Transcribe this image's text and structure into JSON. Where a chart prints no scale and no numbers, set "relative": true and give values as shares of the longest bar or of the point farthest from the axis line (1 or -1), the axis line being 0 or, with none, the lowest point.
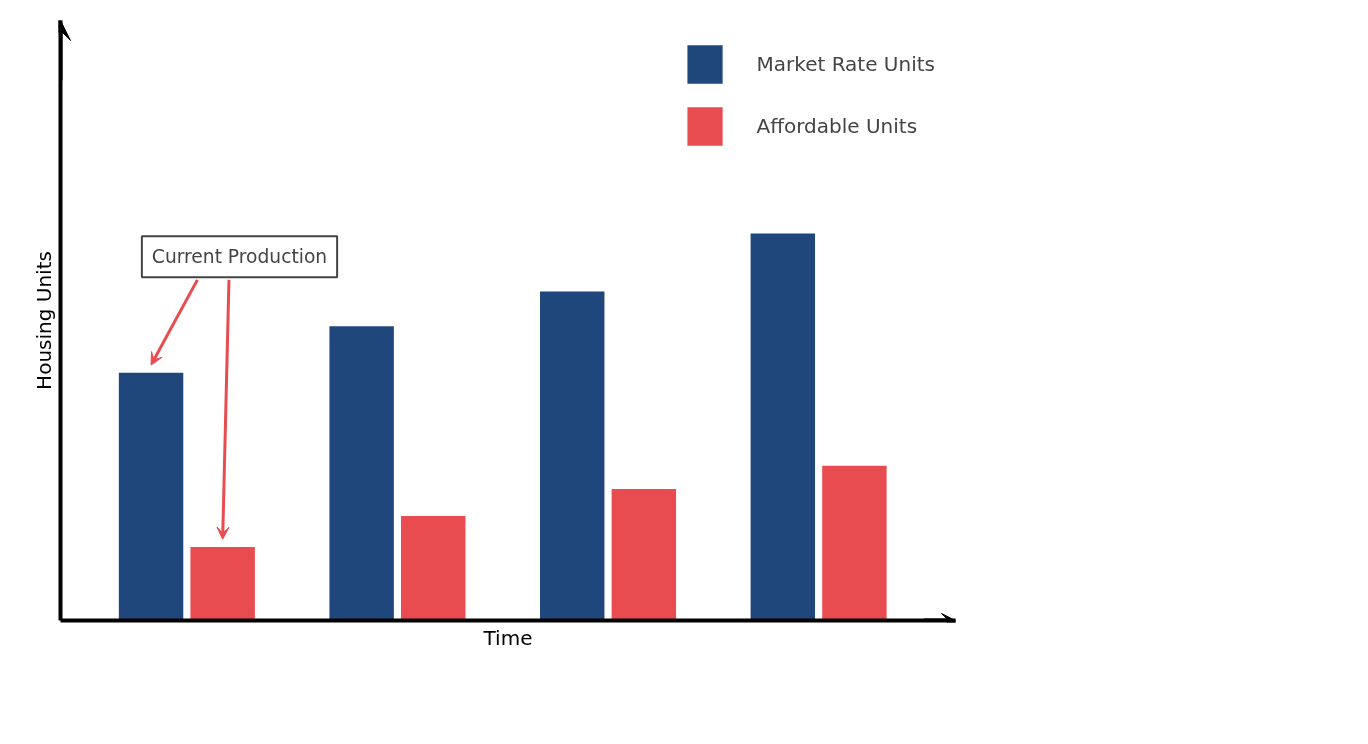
{
  "chart_data": {
    "type": "bar",
    "xlabel": "Time",
    "ylabel": "Housing Units",
    "relative": true,
    "categories": [
      null,
      null,
      null,
      null
    ],
    "series": [
      {
        "name": "Market Rate Units",
        "color": "#1f477b",
        "values": [
          0.64,
          0.76,
          0.85,
          1
        ]
      },
      {
        "name": "Affordable Units",
        "color": "#e84c50",
        "values": [
          0.19,
          0.27,
          0.34,
          0.4
        ]
      }
    ],
    "annotations": [
      "Current Production"
    ],
    "legend": "top right"
  }
}
